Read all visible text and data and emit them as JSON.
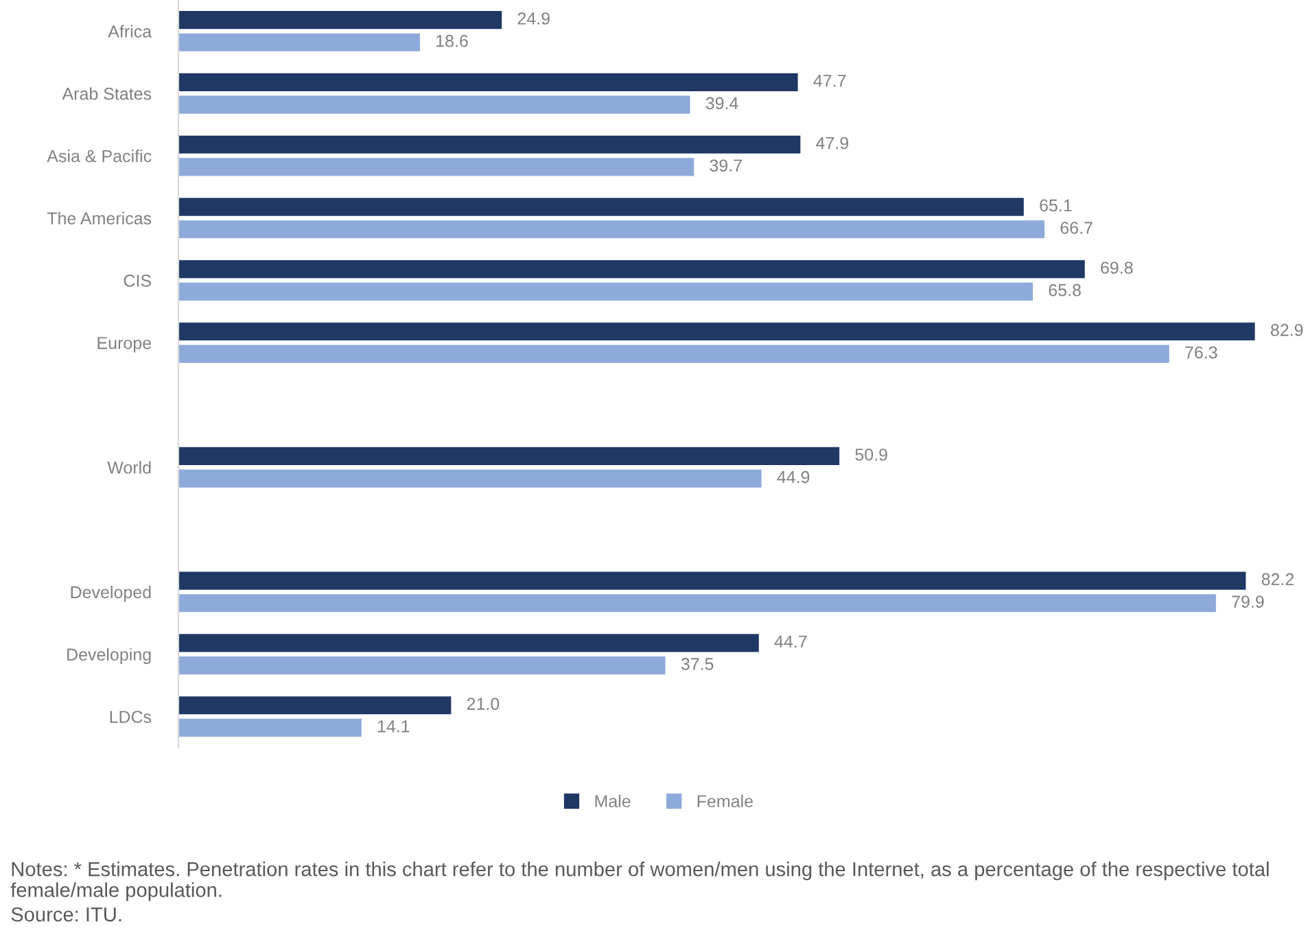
{
  "chart_data": {
    "type": "bar",
    "orientation": "horizontal",
    "categories": [
      "Africa",
      "Arab States",
      "Asia & Pacific",
      "The Americas",
      "CIS",
      "Europe",
      null,
      "World",
      null,
      "Developed",
      "Developing",
      "LDCs"
    ],
    "series": [
      {
        "name": "Male",
        "color": "#1f3864",
        "values": [
          24.9,
          47.7,
          47.9,
          65.1,
          69.8,
          82.9,
          null,
          50.9,
          null,
          82.2,
          44.7,
          21.0
        ],
        "value_labels": [
          "24.9",
          "47.7",
          "47.9",
          "65.1",
          "69.8",
          "82.9",
          null,
          "50.9",
          null,
          "82.2",
          "44.7",
          "21.0"
        ]
      },
      {
        "name": "Female",
        "color": "#8eaadb",
        "values": [
          18.6,
          39.4,
          39.7,
          66.7,
          65.8,
          76.3,
          null,
          44.9,
          null,
          79.9,
          37.5,
          14.1
        ],
        "value_labels": [
          "18.6",
          "39.4",
          "39.7",
          "66.7",
          "65.8",
          "76.3",
          null,
          "44.9",
          null,
          "79.9",
          "37.5",
          "14.1"
        ]
      }
    ],
    "tick_labels": "y",
    "grid": false,
    "legend": "bottom",
    "annotations": [
      "Notes: * Estimates. Penetration rates in this chart refer to the number of women/men using the Internet, as a percentage of the respective total female/male population.",
      "Source: ITU."
    ]
  }
}
